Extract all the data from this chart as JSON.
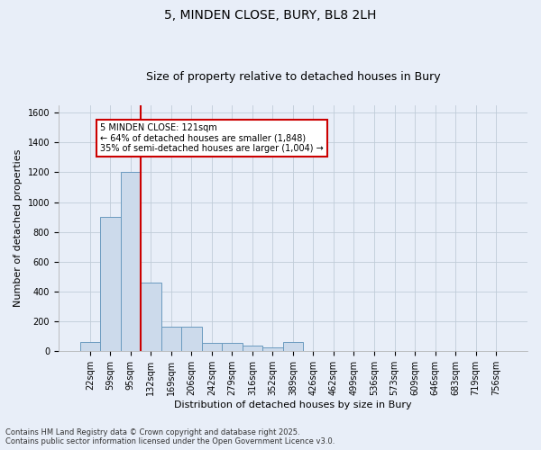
{
  "title_line1": "5, MINDEN CLOSE, BURY, BL8 2LH",
  "title_line2": "Size of property relative to detached houses in Bury",
  "xlabel": "Distribution of detached houses by size in Bury",
  "ylabel": "Number of detached properties",
  "categories": [
    "22sqm",
    "59sqm",
    "95sqm",
    "132sqm",
    "169sqm",
    "206sqm",
    "242sqm",
    "279sqm",
    "316sqm",
    "352sqm",
    "389sqm",
    "426sqm",
    "462sqm",
    "499sqm",
    "536sqm",
    "573sqm",
    "609sqm",
    "646sqm",
    "683sqm",
    "719sqm",
    "756sqm"
  ],
  "values": [
    60,
    900,
    1200,
    460,
    165,
    165,
    55,
    55,
    40,
    25,
    65,
    5,
    0,
    0,
    0,
    0,
    0,
    0,
    0,
    0,
    0
  ],
  "bar_color": "#ccdaeb",
  "bar_edge_color": "#6a9abf",
  "vline_x_idx": 2.5,
  "vline_color": "#cc0000",
  "annotation_text": "5 MINDEN CLOSE: 121sqm\n← 64% of detached houses are smaller (1,848)\n35% of semi-detached houses are larger (1,004) →",
  "annotation_box_color": "#cc0000",
  "annotation_fill": "white",
  "ylim": [
    0,
    1650
  ],
  "yticks": [
    0,
    200,
    400,
    600,
    800,
    1000,
    1200,
    1400,
    1600
  ],
  "grid_color": "#c0ccd8",
  "footer_line1": "Contains HM Land Registry data © Crown copyright and database right 2025.",
  "footer_line2": "Contains public sector information licensed under the Open Government Licence v3.0.",
  "bg_color": "#e8eef8",
  "title_fontsize": 10,
  "subtitle_fontsize": 9,
  "ylabel_fontsize": 8,
  "xlabel_fontsize": 8,
  "tick_fontsize": 7,
  "footer_fontsize": 6,
  "annot_fontsize": 7
}
